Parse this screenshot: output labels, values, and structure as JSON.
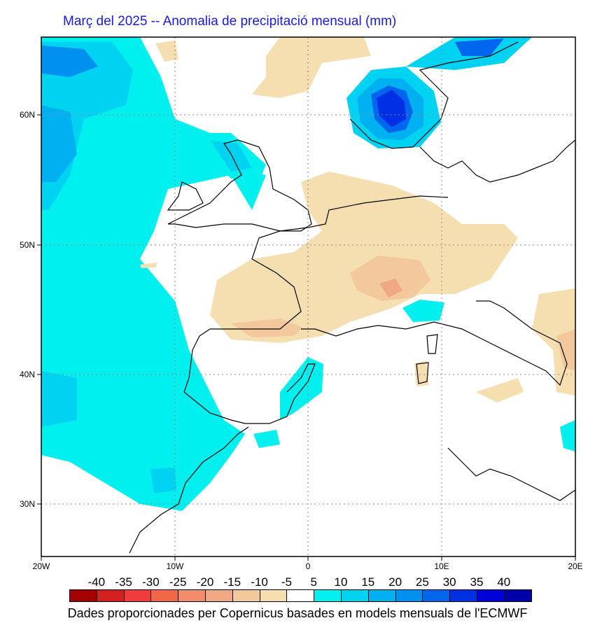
{
  "title": "Març del 2025 -- Anomalia de precipitació mensual (mm)",
  "footer": "Dades proporcionades per Copernicus basades en models mensuals de l'ECMWF",
  "map": {
    "lon_ticks": [
      "20W",
      "10W",
      "0",
      "10E",
      "20E"
    ],
    "lat_ticks": [
      "60N",
      "50N",
      "40N",
      "30N"
    ],
    "lon_range": [
      -20,
      20
    ],
    "lat_range": [
      26,
      66
    ],
    "gridlines": "dotted"
  },
  "colorbar": {
    "labels": [
      "-40",
      "-35",
      "-30",
      "-25",
      "-20",
      "-15",
      "-10",
      "-5",
      "5",
      "10",
      "15",
      "20",
      "25",
      "30",
      "35",
      "40"
    ],
    "colors": [
      "#a50000",
      "#d42020",
      "#f23c3c",
      "#f26648",
      "#f28c6c",
      "#f0a882",
      "#f2c89c",
      "#f5deb0",
      "#ffffff",
      "#00f0f0",
      "#00d2f2",
      "#00b0f0",
      "#0090f0",
      "#0066ee",
      "#0030e6",
      "#0000d8",
      "#0000aa"
    ]
  }
}
